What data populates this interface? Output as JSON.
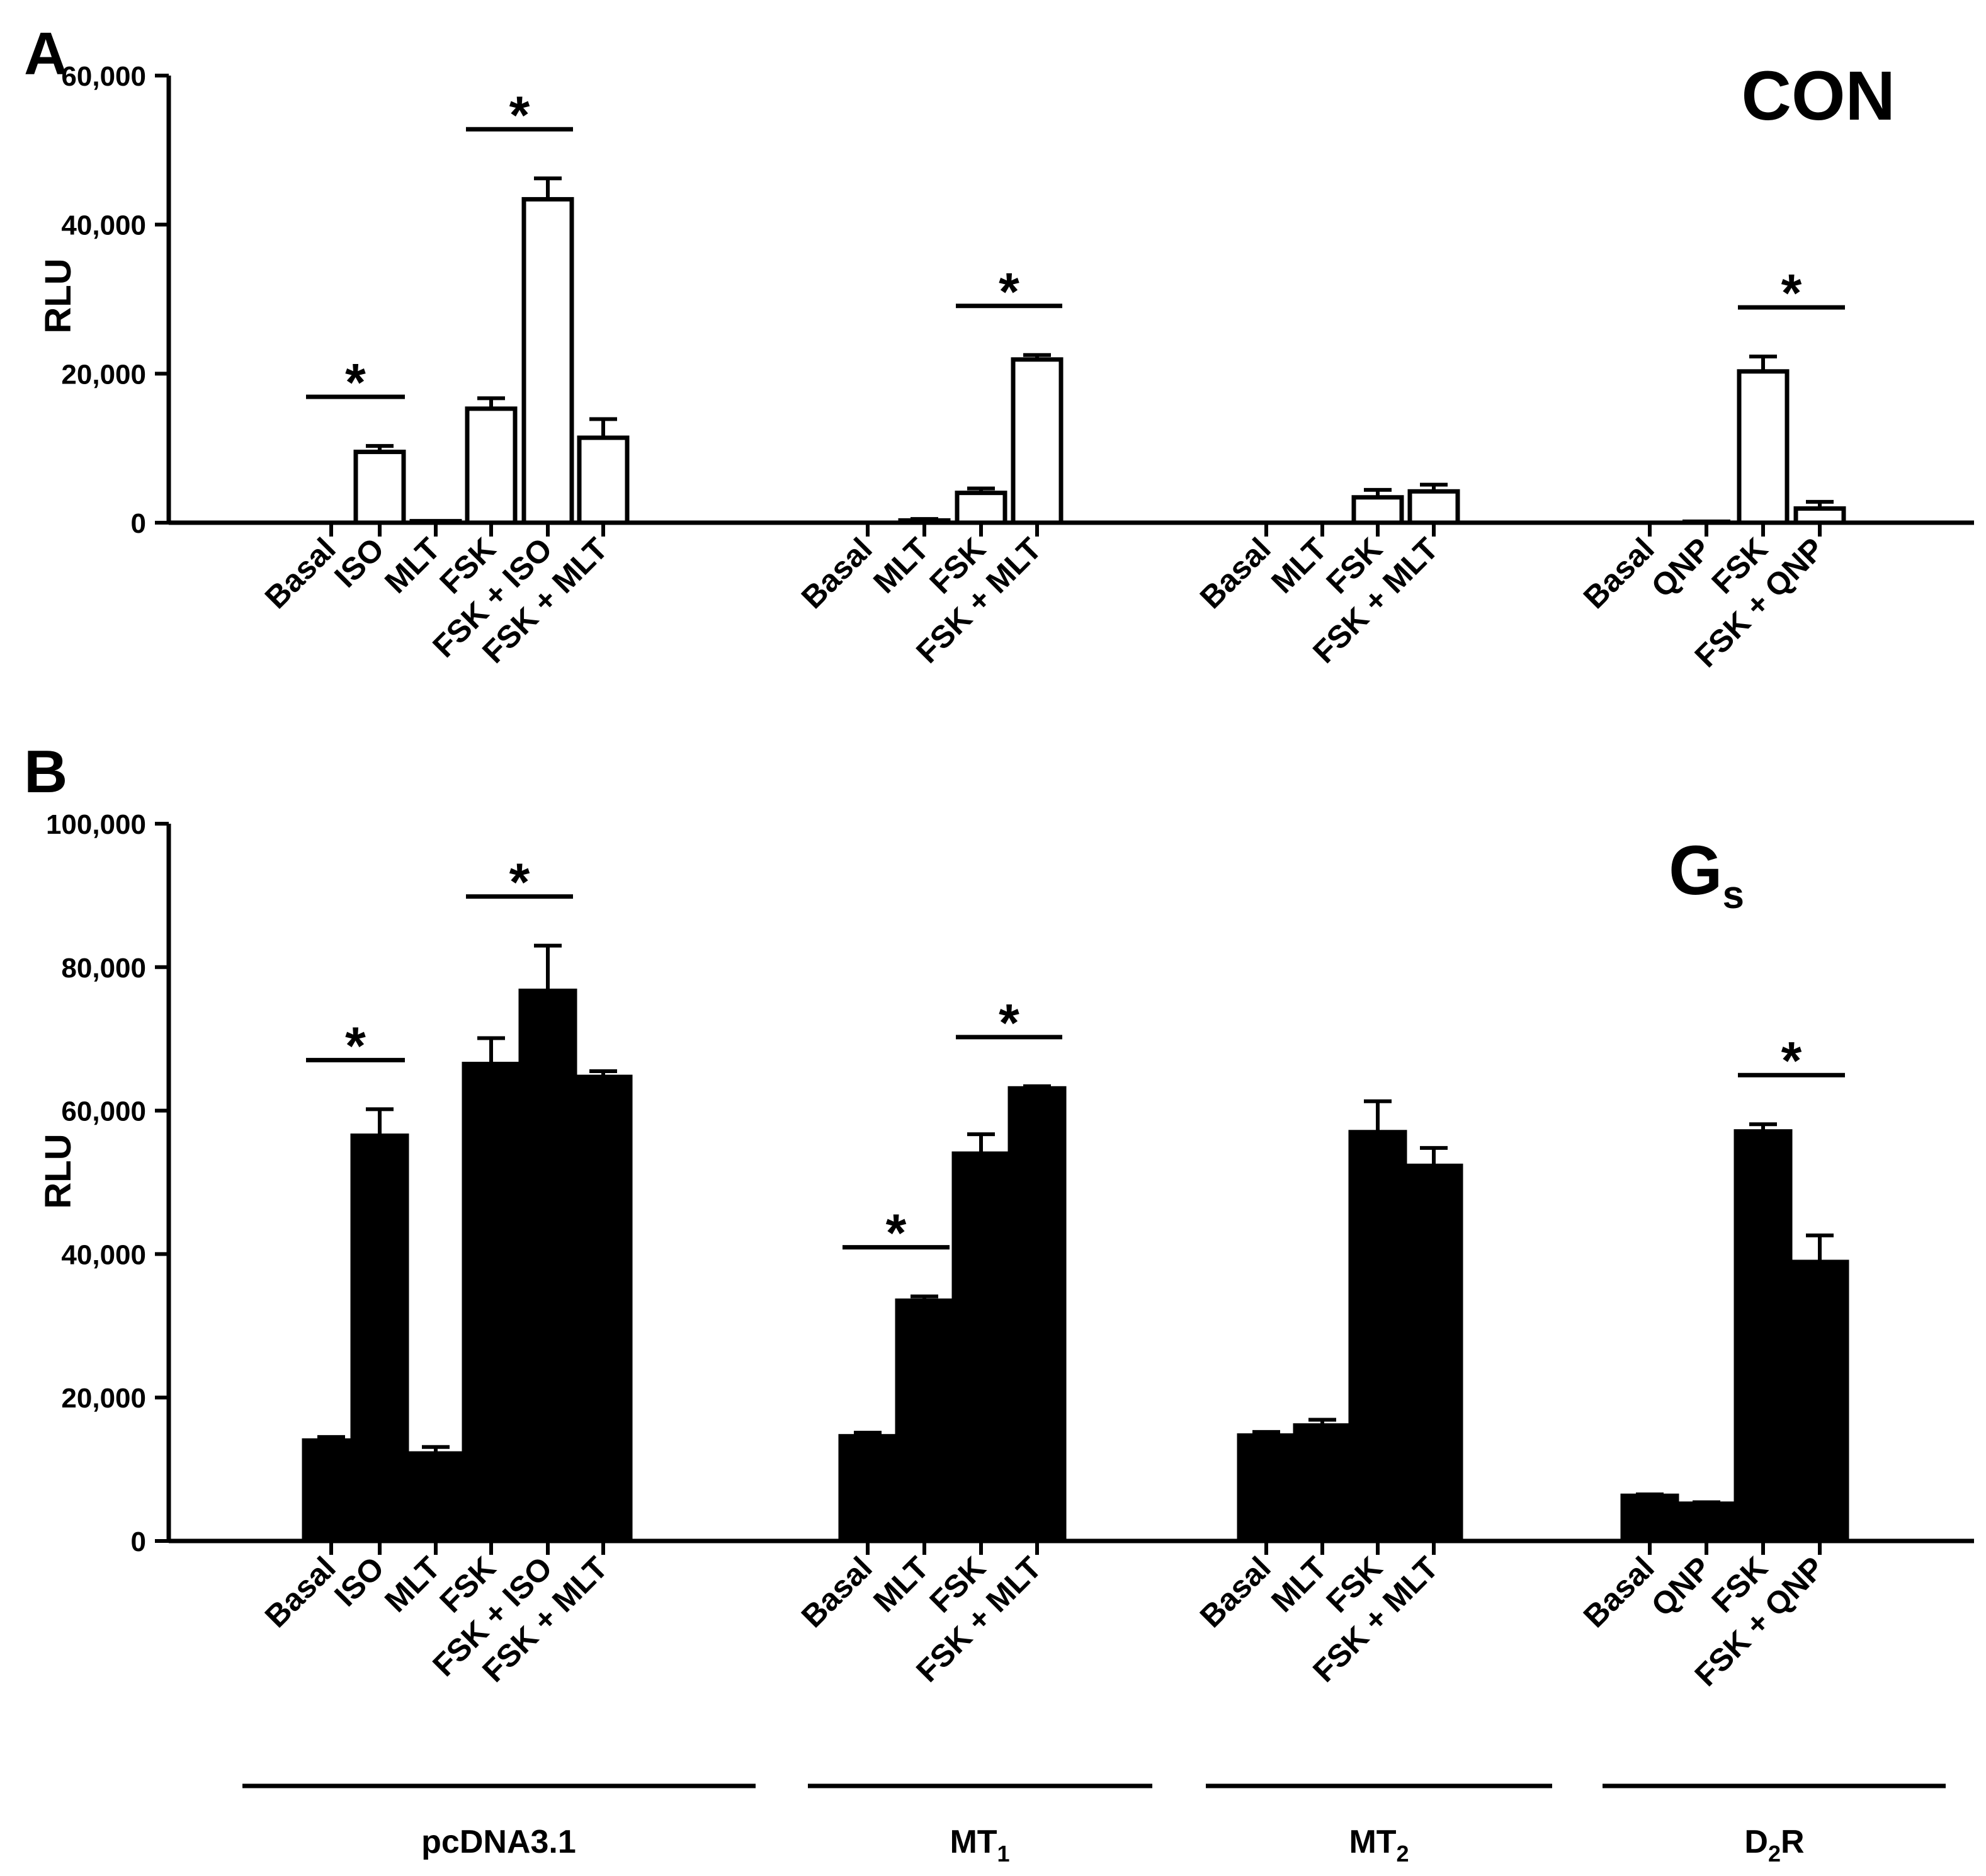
{
  "chart_data": [
    {
      "panel": "A",
      "title": "CON",
      "type": "bar",
      "ylabel": "RLU",
      "ylim": [
        0,
        60000
      ],
      "yticks": [
        "0",
        "20,000",
        "40,000",
        "60,000"
      ],
      "bar_color": "#ffffff",
      "groups": [
        {
          "name": "pcDNA3.1",
          "categories": [
            "Basal",
            "ISO",
            "MLT",
            "FSK",
            "FSK + ISO",
            "FSK + MLT"
          ],
          "values": [
            0,
            9500,
            200,
            15300,
            43400,
            11400
          ],
          "errors": [
            0,
            800,
            0,
            1400,
            2800,
            2500
          ],
          "significance": [
            [
              0,
              1
            ],
            [
              3,
              4
            ]
          ]
        },
        {
          "name": "MT1",
          "categories": [
            "Basal",
            "MLT",
            "FSK",
            "FSK + MLT"
          ],
          "values": [
            0,
            300,
            4000,
            21900
          ],
          "errors": [
            0,
            200,
            600,
            600
          ],
          "significance": [
            [
              2,
              3
            ]
          ]
        },
        {
          "name": "MT2",
          "categories": [
            "Basal",
            "MLT",
            "FSK",
            "FSK + MLT"
          ],
          "values": [
            0,
            0,
            3400,
            4200
          ],
          "errors": [
            0,
            0,
            1000,
            900
          ],
          "significance": []
        },
        {
          "name": "D2R",
          "categories": [
            "Basal",
            "QNP",
            "FSK",
            "FSK + QNP"
          ],
          "values": [
            0,
            100,
            20300,
            1900
          ],
          "errors": [
            0,
            0,
            2000,
            900
          ],
          "significance": [
            [
              2,
              3
            ]
          ]
        }
      ]
    },
    {
      "panel": "B",
      "title": "Gs",
      "type": "bar",
      "ylabel": "RLU",
      "ylim": [
        0,
        100000
      ],
      "yticks": [
        "0",
        "20,000",
        "40,000",
        "60,000",
        "80,000",
        "100,000"
      ],
      "bar_color": "#000000",
      "groups": [
        {
          "name": "pcDNA3.1",
          "categories": [
            "Basal",
            "ISO",
            "MLT",
            "FSK",
            "FSK + ISO",
            "FSK + MLT"
          ],
          "values": [
            14000,
            56500,
            12200,
            66500,
            76700,
            64700
          ],
          "errors": [
            500,
            3700,
            900,
            3600,
            6300,
            800
          ],
          "significance": [
            [
              0,
              1
            ],
            [
              3,
              4
            ]
          ]
        },
        {
          "name": "MT1",
          "categories": [
            "Basal",
            "MLT",
            "FSK",
            "FSK + MLT"
          ],
          "values": [
            14600,
            33500,
            54000,
            63100
          ],
          "errors": [
            500,
            600,
            2700,
            300
          ],
          "significance": [
            [
              0,
              1
            ],
            [
              2,
              3
            ]
          ]
        },
        {
          "name": "MT2",
          "categories": [
            "Basal",
            "MLT",
            "FSK",
            "FSK + MLT"
          ],
          "values": [
            14700,
            16100,
            57000,
            52300
          ],
          "errors": [
            500,
            800,
            4300,
            2500
          ],
          "significance": []
        },
        {
          "name": "D2R",
          "categories": [
            "Basal",
            "QNP",
            "FSK",
            "FSK + QNP"
          ],
          "values": [
            6300,
            5200,
            57100,
            38900
          ],
          "errors": [
            200,
            200,
            1000,
            3700
          ],
          "significance": [
            [
              2,
              3
            ]
          ]
        }
      ]
    }
  ],
  "group_labels": [
    {
      "base": "pcDNA3.1",
      "sub": ""
    },
    {
      "base": "MT",
      "sub": "1"
    },
    {
      "base": "MT",
      "sub": "2"
    },
    {
      "base": "D",
      "sub": "2",
      "suffix": "R"
    }
  ],
  "title_b": {
    "base": "G",
    "sub": "s"
  },
  "significance_marker": "*"
}
